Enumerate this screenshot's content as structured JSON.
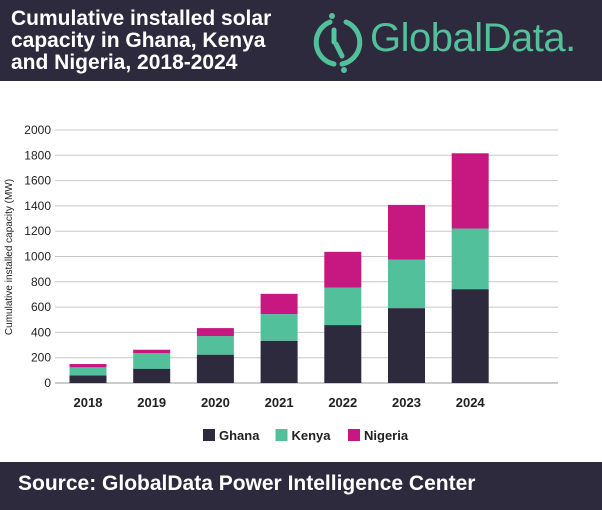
{
  "header": {
    "title": "Cumulative installed solar capacity in Ghana, Kenya and Nigeria, 2018-2024",
    "logo": "GlobalData."
  },
  "footer": {
    "source": "Source: GlobalData Power Intelligence Center"
  },
  "colors": {
    "Ghana": "#2d2a3e",
    "Kenya": "#52c09a",
    "Nigeria": "#c71882",
    "background_band": "#2d2a3e",
    "grid": "#c8c8c8"
  },
  "chart_data": {
    "type": "bar",
    "stacked": true,
    "title": "Cumulative installed solar capacity in Ghana, Kenya and Nigeria, 2018-2024",
    "xlabel": "",
    "ylabel": "Cumulative installed capacity (MW)",
    "ylim": [
      0,
      2000
    ],
    "yticks": [
      0,
      200,
      400,
      600,
      800,
      1000,
      1200,
      1400,
      1600,
      1800,
      2000
    ],
    "grid": true,
    "legend": "bottom",
    "categories": [
      "2018",
      "2019",
      "2020",
      "2021",
      "2022",
      "2023",
      "2024"
    ],
    "series": [
      {
        "name": "Ghana",
        "values": [
          60,
          113,
          224,
          334,
          458,
          592,
          742
        ]
      },
      {
        "name": "Kenya",
        "values": [
          64,
          124,
          147,
          211,
          297,
          384,
          479
        ]
      },
      {
        "name": "Nigeria",
        "values": [
          26,
          26,
          63,
          160,
          282,
          432,
          595
        ]
      }
    ]
  }
}
